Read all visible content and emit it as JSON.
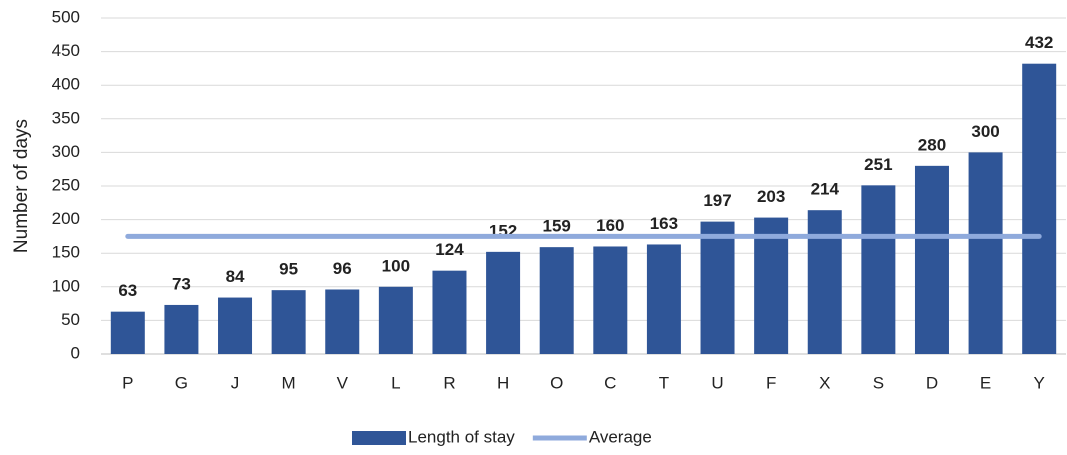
{
  "chart_data": {
    "type": "bar",
    "y_label": "Number of days",
    "categories": [
      "P",
      "G",
      "J",
      "M",
      "V",
      "L",
      "R",
      "H",
      "O",
      "C",
      "T",
      "U",
      "F",
      "X",
      "S",
      "D",
      "E",
      "Y"
    ],
    "series": [
      {
        "name": "Length of stay",
        "type": "bar",
        "color": "#2f5597",
        "values": [
          63,
          73,
          84,
          95,
          96,
          100,
          124,
          152,
          159,
          160,
          163,
          197,
          203,
          214,
          251,
          280,
          300,
          432
        ]
      },
      {
        "name": "Average",
        "type": "line",
        "color": "#8faadc",
        "values": [
          175,
          175,
          175,
          175,
          175,
          175,
          175,
          175,
          175,
          175,
          175,
          175,
          175,
          175,
          175,
          175,
          175,
          175
        ]
      }
    ],
    "ylim": [
      0,
      500
    ],
    "yticks": [
      0,
      50,
      100,
      150,
      200,
      250,
      300,
      350,
      400,
      450,
      500
    ],
    "grid": true,
    "legend": "bottom"
  }
}
